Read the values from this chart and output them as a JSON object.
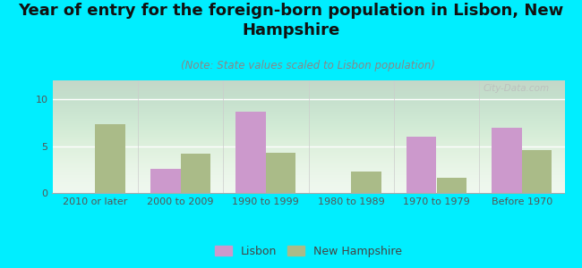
{
  "title": "Year of entry for the foreign-born population in Lisbon, New\nHampshire",
  "subtitle": "(Note: State values scaled to Lisbon population)",
  "categories": [
    "2010 or later",
    "2000 to 2009",
    "1990 to 1999",
    "1980 to 1989",
    "1970 to 1979",
    "Before 1970"
  ],
  "lisbon_values": [
    0,
    2.6,
    8.7,
    0,
    6.0,
    7.0
  ],
  "nh_values": [
    7.3,
    4.2,
    4.3,
    2.3,
    1.6,
    4.6
  ],
  "lisbon_color": "#cc99cc",
  "nh_color": "#aabb88",
  "background_color": "#00eeff",
  "ylim": [
    0,
    12
  ],
  "yticks": [
    0,
    5,
    10
  ],
  "bar_width": 0.35,
  "title_fontsize": 13,
  "subtitle_fontsize": 8.5,
  "tick_fontsize": 8,
  "legend_fontsize": 9,
  "watermark": "City-Data.com"
}
